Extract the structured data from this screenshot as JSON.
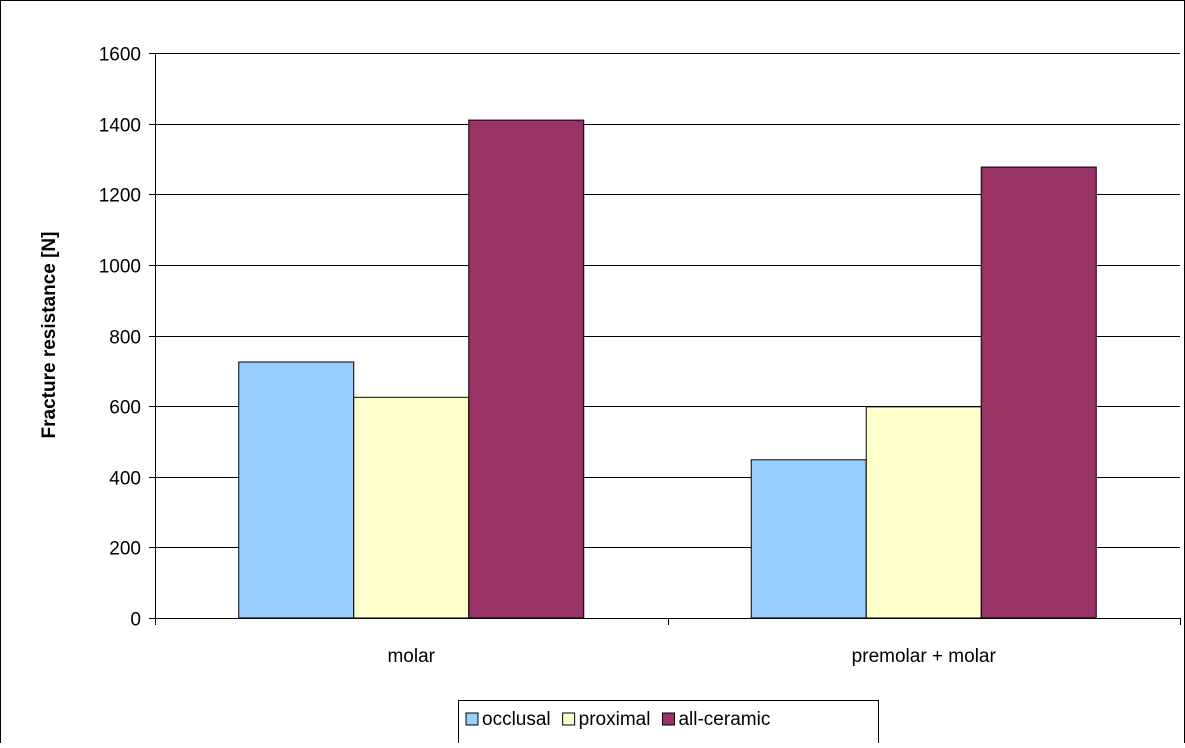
{
  "chart_data": {
    "type": "bar",
    "title": "",
    "xlabel": "",
    "ylabel": "Fracture resistance [N]",
    "ylim": [
      0,
      1600
    ],
    "yticks": [
      0,
      200,
      400,
      600,
      800,
      1000,
      1200,
      1400,
      1600
    ],
    "grid": true,
    "legend_position": "bottom",
    "categories": [
      "molar",
      "premolar + molar"
    ],
    "series": [
      {
        "name": "occlusal",
        "values": [
          725,
          448
        ],
        "color": "#99ccff"
      },
      {
        "name": "proximal",
        "values": [
          625,
          598
        ],
        "color": "#ffffcc"
      },
      {
        "name": "all-ceramic",
        "values": [
          1410,
          1277
        ],
        "color": "#993366"
      }
    ]
  }
}
